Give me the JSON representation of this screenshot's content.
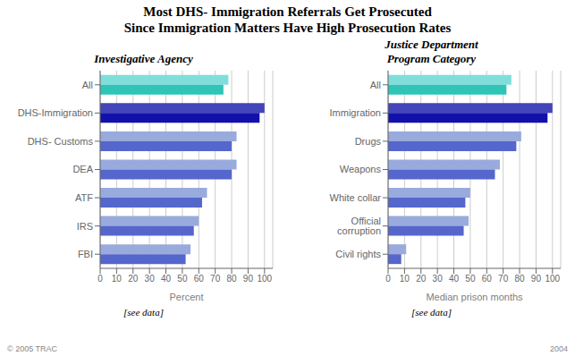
{
  "title": "Most DHS- Immigration Referrals Get Prosecuted",
  "subtitle": "Since Immigration Matters Have High Prosecution Rates",
  "annotations": [
    "© 2005 TRAC",
    "2004"
  ],
  "chart_data": [
    {
      "type": "bar",
      "orientation": "horizontal",
      "title": "Investigative Agency",
      "categories": [
        "All",
        "DHS-Immigration",
        "DHS- Customs",
        "DEA",
        "ATF",
        "IRS",
        "FBI"
      ],
      "series": [
        {
          "colors": [
            "#7FDED9",
            "#4444BB",
            "#99AADD",
            "#99AADD",
            "#99AADD",
            "#99AADD",
            "#99AADD"
          ],
          "values": [
            78,
            100,
            83,
            83,
            65,
            60,
            55
          ]
        },
        {
          "colors": [
            "#2EC4B6",
            "#1111AA",
            "#5566CC",
            "#5566CC",
            "#5566CC",
            "#5566CC",
            "#5566CC"
          ],
          "values": [
            75,
            97,
            80,
            80,
            62,
            57,
            52
          ]
        }
      ],
      "xlabel": "Percent",
      "xlim": [
        0,
        105
      ],
      "xticks": [
        0,
        10,
        20,
        30,
        40,
        50,
        60,
        70,
        80,
        90,
        100
      ],
      "grid": true,
      "annotations": [
        "[see data]"
      ]
    },
    {
      "type": "bar",
      "orientation": "horizontal",
      "title": "Justice Department\nProgram Category",
      "categories": [
        "All",
        "Immigration",
        "Drugs",
        "Weapons",
        "White collar",
        "Official corruption",
        "Civil rights"
      ],
      "series": [
        {
          "colors": [
            "#7FDED9",
            "#4444BB",
            "#99AADD",
            "#99AADD",
            "#99AADD",
            "#99AADD",
            "#99AADD"
          ],
          "values": [
            75,
            100,
            81,
            68,
            50,
            49,
            11
          ]
        },
        {
          "colors": [
            "#2EC4B6",
            "#1111AA",
            "#5566CC",
            "#5566CC",
            "#5566CC",
            "#5566CC",
            "#5566CC"
          ],
          "values": [
            72,
            97,
            78,
            65,
            47,
            46,
            8
          ]
        }
      ],
      "xlabel": "Median prison months",
      "xlim": [
        0,
        105
      ],
      "xticks": [
        0,
        10,
        20,
        30,
        40,
        50,
        60,
        70,
        80,
        90,
        100
      ],
      "grid": true,
      "annotations": [
        "[see data]"
      ]
    }
  ]
}
